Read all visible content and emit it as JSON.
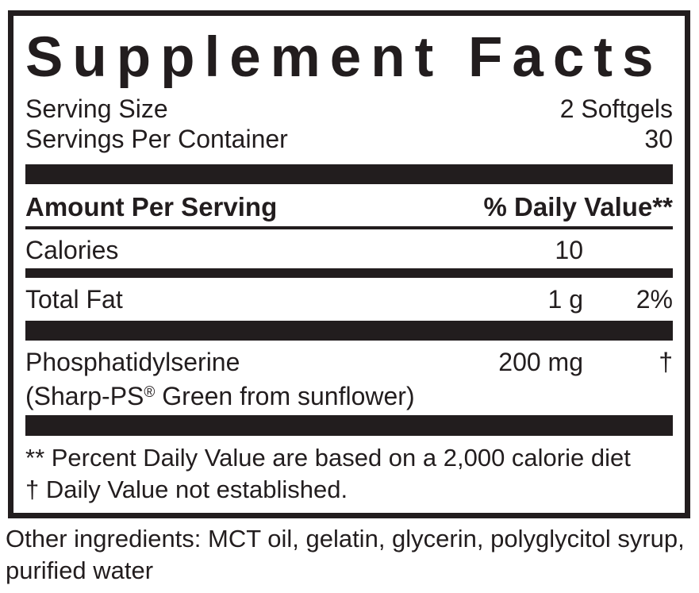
{
  "panel": {
    "title": "Supplement Facts",
    "serving_rows": [
      {
        "label": "Serving Size",
        "value": "2 Softgels"
      },
      {
        "label": "Servings Per Container",
        "value": "30"
      }
    ],
    "header": {
      "amount_label": "Amount Per Serving",
      "dv_label": "% Daily Value**"
    },
    "rows": [
      {
        "name": "Calories",
        "amount": "10",
        "dv": ""
      },
      {
        "name": "Total Fat",
        "amount": "1 g",
        "dv": "2%"
      },
      {
        "name": "Phosphatidylserine",
        "name2_parts": [
          "(Sharp-PS",
          "®",
          " Green from sunflower)"
        ],
        "amount": "200 mg",
        "dv": "†"
      }
    ],
    "footnotes": [
      "** Percent Daily Value are based on a 2,000 calorie diet",
      "† Daily Value not established."
    ]
  },
  "other_ingredients": {
    "lines": [
      "Other ingredients: MCT oil, gelatin, glycerin, polyglycitol syrup,",
      "purified water"
    ]
  },
  "colors": {
    "ink": "#221d1e",
    "background": "#ffffff"
  }
}
